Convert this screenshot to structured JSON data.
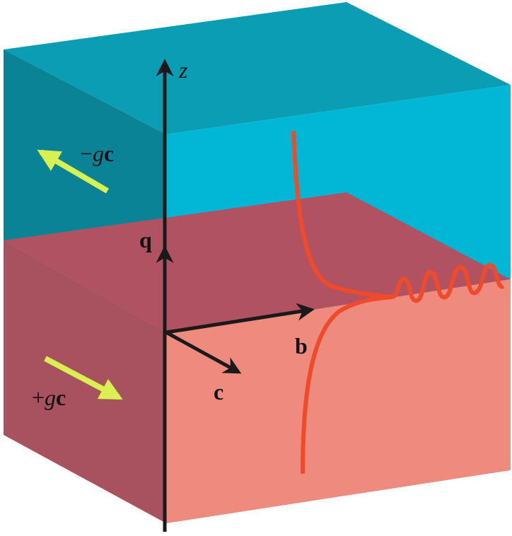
{
  "labels": {
    "z": "z",
    "minus_gc_sign": "−",
    "minus_gc_g": "g",
    "minus_gc_c": "c",
    "q": "q",
    "b": "b",
    "c": "c",
    "plus_gc_sign": "+",
    "plus_gc_g": "g",
    "plus_gc_c": "c"
  },
  "colors": {
    "top_face_upper": "#0a9db3",
    "left_face_upper": "#0b8396",
    "right_face_upper": "#02b6d6",
    "top_face_lower": "#b15262",
    "left_face_lower": "#a9525f",
    "right_face_lower": "#ef8a7e",
    "wave": "#f04a2a",
    "field_arrow": "#d8f050",
    "axes": "#1a1a1a"
  }
}
